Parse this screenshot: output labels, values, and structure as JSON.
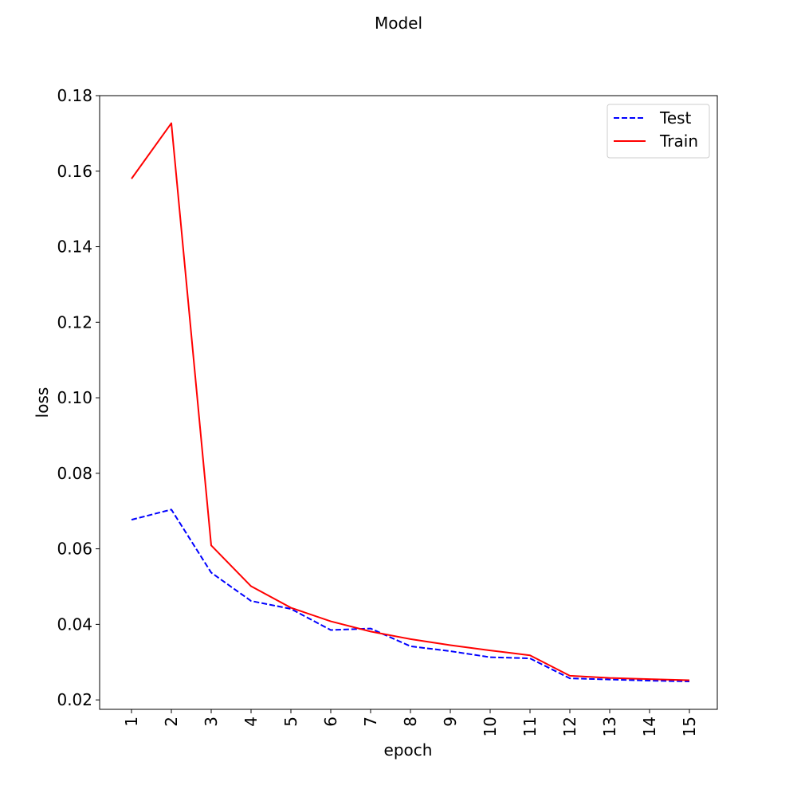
{
  "chart_data": {
    "type": "line",
    "title": "Model",
    "xlabel": "epoch",
    "ylabel": "loss",
    "x": [
      1,
      2,
      3,
      4,
      5,
      6,
      7,
      8,
      9,
      10,
      11,
      12,
      13,
      14,
      15
    ],
    "x_tick_labels": [
      "1",
      "2",
      "3",
      "4",
      "5",
      "6",
      "7",
      "8",
      "9",
      "10",
      "11",
      "12",
      "13",
      "14",
      "15"
    ],
    "y_ticks": [
      0.02,
      0.04,
      0.06,
      0.08,
      0.1,
      0.12,
      0.14,
      0.16,
      0.18
    ],
    "y_tick_labels": [
      "0.02",
      "0.04",
      "0.06",
      "0.08",
      "0.10",
      "0.12",
      "0.14",
      "0.16",
      "0.18"
    ],
    "xlim": [
      0.2,
      15.7
    ],
    "ylim": [
      0.0175,
      0.18
    ],
    "grid": false,
    "legend_position": "top-right",
    "series": [
      {
        "name": "Test",
        "color": "#0000ff",
        "style": "dashed",
        "values": [
          0.0677,
          0.0704,
          0.0537,
          0.0462,
          0.0441,
          0.0385,
          0.0389,
          0.0342,
          0.0329,
          0.0313,
          0.031,
          0.0257,
          0.0254,
          0.0251,
          0.0249
        ]
      },
      {
        "name": "Train",
        "color": "#ff0000",
        "style": "solid",
        "values": [
          0.158,
          0.1727,
          0.0609,
          0.0501,
          0.0444,
          0.0408,
          0.0381,
          0.0361,
          0.0345,
          0.0331,
          0.0318,
          0.0264,
          0.0258,
          0.0255,
          0.0252
        ]
      }
    ]
  }
}
